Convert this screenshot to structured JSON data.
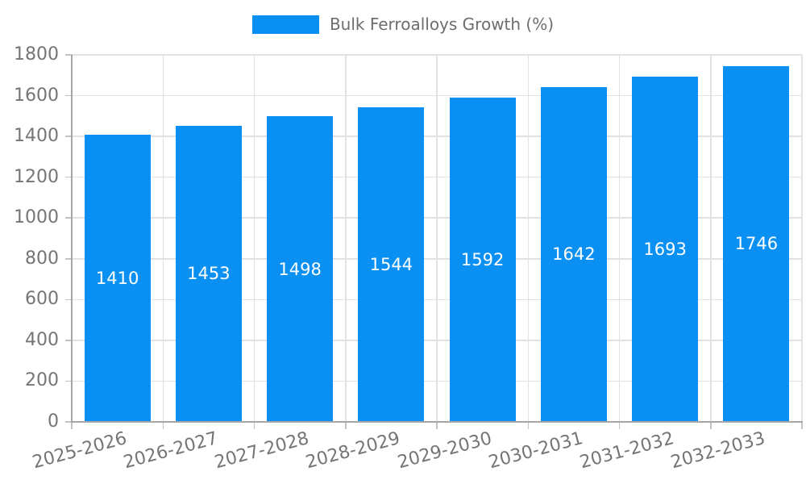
{
  "legend": {
    "label": "Bulk Ferroalloys Growth (%)",
    "swatch_color": "#0a90f2",
    "text_color": "#6d6d6d"
  },
  "chart_data": {
    "type": "bar",
    "title": "Bulk Ferroalloys Growth (%)",
    "categories": [
      "2025-2026",
      "2026-2027",
      "2027-2028",
      "2028-2029",
      "2029-2030",
      "2030-2031",
      "2031-2032",
      "2032-2033"
    ],
    "values": [
      1410,
      1453,
      1498,
      1544,
      1592,
      1642,
      1693,
      1746
    ],
    "value_labels": [
      "1410",
      "1453",
      "1498",
      "1544",
      "1592",
      "1642",
      "1693",
      "1746"
    ],
    "xlabel": "",
    "ylabel": "",
    "ylim": [
      0,
      1800
    ],
    "y_ticks": [
      0,
      200,
      400,
      600,
      800,
      1000,
      1200,
      1400,
      1600,
      1800
    ],
    "grid": "both",
    "legend_position": "top-center",
    "x_label_rotation_deg": -15,
    "bar_color": "#0a90f2",
    "value_label_color": "#ffffff",
    "axis_text_color": "#757575",
    "grid_color": "#e2e2e2",
    "axis_line_color": "#a6a6a6",
    "tick_color": "#c2c2c2",
    "background_color": "#ffffff"
  }
}
